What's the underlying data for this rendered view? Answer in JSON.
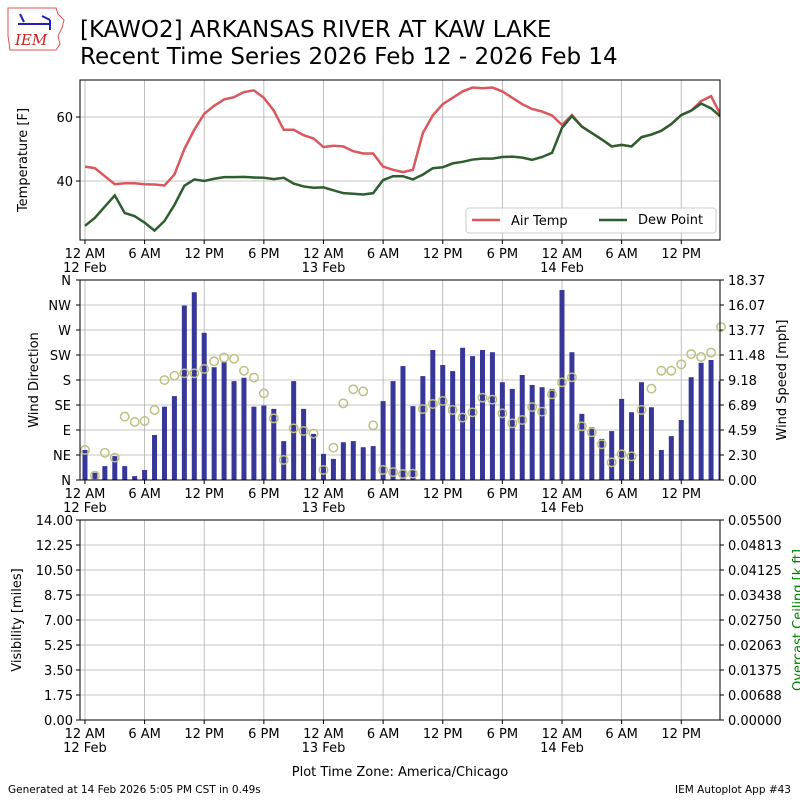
{
  "header": {
    "logo_text": "IEM",
    "title_line1": "[KAWO2] ARKANSAS RIVER  AT KAW LAKE",
    "title_line2": "Recent Time Series 2026 Feb 12 - 2026 Feb 14"
  },
  "footer": {
    "generated": "Generated at 14 Feb 2026 5:05 PM CST in 0.49s",
    "app": "IEM Autoplot App #43",
    "timezone": "Plot Time Zone: America/Chicago"
  },
  "x_axis": {
    "tick_hours": [
      0,
      6,
      12,
      18,
      24,
      30,
      36,
      42,
      48,
      54,
      60
    ],
    "tick_labels": [
      "12 AM",
      "6 AM",
      "12 PM",
      "6 PM",
      "12 AM",
      "6 AM",
      "12 PM",
      "6 PM",
      "12 AM",
      "6 AM",
      "12 PM"
    ],
    "date_hours": [
      0,
      24,
      48
    ],
    "date_labels": [
      "12 Feb",
      "13 Feb",
      "14 Feb"
    ],
    "range_hours": [
      -0.5,
      63.9
    ]
  },
  "colors": {
    "air": "#d9575d",
    "dew": "#2e5e2e",
    "bar": "#373699",
    "circle": "#bfbf7f",
    "ceiling": "#008000"
  },
  "chart_data": [
    {
      "type": "line",
      "ylabel": "Temperature [F]",
      "ylim": [
        21.6,
        71.6
      ],
      "yticks": [
        40,
        60
      ],
      "grid": true,
      "legend_position": "lower-right",
      "x_hours": [
        0,
        1,
        2,
        3,
        4,
        5,
        6,
        7,
        8,
        9,
        10,
        11,
        12,
        13,
        14,
        15,
        16,
        17,
        18,
        19,
        20,
        21,
        22,
        23,
        24,
        25,
        26,
        27,
        28,
        29,
        30,
        31,
        32,
        33,
        34,
        35,
        36,
        37,
        38,
        39,
        40,
        41,
        42,
        43,
        44,
        45,
        46,
        47,
        48,
        49,
        50,
        51,
        52,
        53,
        54,
        55,
        56,
        57,
        58,
        59,
        60,
        61,
        62,
        63,
        64
      ],
      "series": [
        {
          "name": "Air Temp",
          "values": [
            44.5,
            44,
            41.5,
            39,
            39.3,
            39.3,
            39,
            38.9,
            38.6,
            42,
            50,
            56,
            61,
            63.5,
            65.5,
            66.2,
            67.8,
            68.3,
            66,
            62,
            56,
            56,
            54.3,
            53.3,
            50.6,
            51,
            50.8,
            49.3,
            48.6,
            48.6,
            44.5,
            43.5,
            42.8,
            43.5,
            55,
            60.5,
            64,
            66,
            68,
            69.2,
            69,
            69.2,
            68,
            66,
            64,
            62.5,
            61.7,
            60.5,
            57.5,
            60.6,
            57,
            55,
            53,
            50.8,
            51.3,
            50.8,
            53.7,
            54.5,
            55.7,
            57.8,
            60.6,
            62,
            65,
            66.5,
            60.5
          ]
        },
        {
          "name": "Dew Point",
          "values": [
            26,
            28.5,
            32,
            35.5,
            30,
            29,
            27,
            24.5,
            27.5,
            32.5,
            38.5,
            40.5,
            40,
            40.7,
            41.2,
            41.2,
            41.3,
            41.1,
            41,
            40.6,
            41,
            39.2,
            38.3,
            37.9,
            38,
            37.1,
            36.2,
            36,
            35.8,
            36.2,
            40.3,
            41.5,
            41.5,
            40.5,
            42,
            44,
            44.3,
            45.5,
            46,
            46.7,
            47,
            47,
            47.5,
            47.6,
            47.3,
            46.6,
            47.5,
            48.8,
            56.6,
            60.3,
            57,
            55,
            53,
            50.8,
            51.3,
            50.8,
            53.7,
            54.5,
            55.7,
            57.8,
            60.6,
            62,
            64.2,
            62.7,
            60
          ]
        }
      ]
    },
    {
      "type": "bar",
      "ylabel": "Wind Direction",
      "y2label": "Wind Speed [mph]",
      "ylim": [
        0,
        360
      ],
      "y2lim": [
        0,
        18.37
      ],
      "yticks": [
        0,
        45,
        90,
        135,
        180,
        225,
        270,
        315,
        360
      ],
      "ytick_labels": [
        "N",
        "NE",
        "E",
        "SE",
        "S",
        "SW",
        "W",
        "NW",
        "N"
      ],
      "y2ticks": [
        "0.00",
        "2.30",
        "4.59",
        "6.89",
        "9.18",
        "11.48",
        "13.77",
        "16.07",
        "18.37"
      ],
      "grid": true,
      "x_hours": [
        0,
        1,
        2,
        3,
        4,
        5,
        6,
        7,
        8,
        9,
        10,
        11,
        12,
        13,
        14,
        15,
        16,
        17,
        18,
        19,
        20,
        21,
        22,
        23,
        24,
        25,
        26,
        27,
        28,
        29,
        30,
        31,
        32,
        33,
        34,
        35,
        36,
        37,
        38,
        39,
        40,
        41,
        42,
        43,
        44,
        45,
        46,
        47,
        48,
        49,
        50,
        51,
        52,
        53,
        54,
        55,
        56,
        57,
        58,
        59,
        60,
        61,
        62,
        63,
        64
      ],
      "series": [
        {
          "name": "Wind Direction",
          "values": [
            54,
            13,
            25,
            43,
            25,
            7,
            18,
            81,
            132,
            151,
            314,
            338,
            265,
            203,
            212,
            178,
            184,
            132,
            134,
            128,
            70,
            178,
            128,
            83,
            47,
            38,
            68,
            70,
            59,
            61,
            142,
            178,
            205,
            133,
            187,
            234,
            207,
            196,
            238,
            223,
            234,
            230,
            176,
            164,
            189,
            171,
            167,
            164,
            342,
            230,
            119,
            95,
            74,
            88,
            146,
            122,
            176,
            131,
            54,
            79,
            108,
            185,
            211,
            216,
            178
          ]
        },
        {
          "name": "Wind Speed",
          "values": [
            2.76,
            0.4,
            2.5,
            2.05,
            5.82,
            5.33,
            5.42,
            6.43,
            9.18,
            9.58,
            9.8,
            9.8,
            10.2,
            10.9,
            11.24,
            11.14,
            10.04,
            9.4,
            7.96,
            5.66,
            1.84,
            4.75,
            4.5,
            4.26,
            0.92,
            2.97,
            7.04,
            8.33,
            8.14,
            5.02,
            0.92,
            0.73,
            0.55,
            0.58,
            6.52,
            6.98,
            7.26,
            6.43,
            5.73,
            6.22,
            7.56,
            7.38,
            6.12,
            5.2,
            5.51,
            6.7,
            6.28,
            7.87,
            8.97,
            9.43,
            4.93,
            4.38,
            3.28,
            1.62,
            2.36,
            2.17,
            6.43,
            8.39,
            10.04,
            10.04,
            10.62,
            11.57,
            11.3,
            11.7,
            14.05
          ]
        }
      ]
    },
    {
      "type": "line",
      "ylabel": "Visibility [miles]",
      "y2label": "Overcast Ceiling [k ft]",
      "ylim": [
        0,
        14
      ],
      "y2lim": [
        0,
        0.055
      ],
      "yticks": [
        "0.00",
        "1.75",
        "3.50",
        "5.25",
        "7.00",
        "8.75",
        "10.50",
        "12.25",
        "14.00"
      ],
      "y2ticks": [
        "0.00000",
        "0.00688",
        "0.01375",
        "0.02063",
        "0.02750",
        "0.03438",
        "0.04125",
        "0.04813",
        "0.05500"
      ],
      "grid": true,
      "series": []
    }
  ]
}
